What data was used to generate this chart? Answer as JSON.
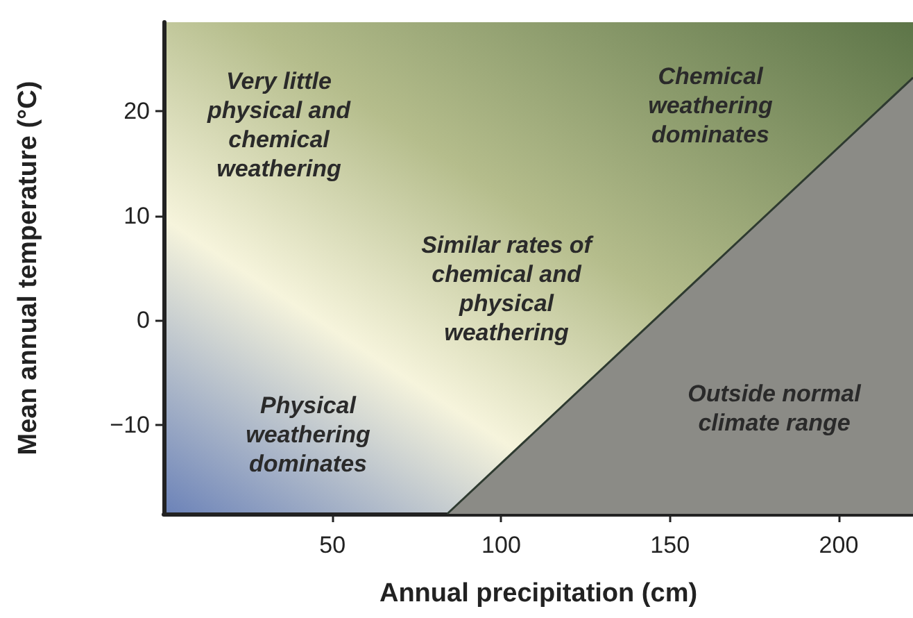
{
  "chart_data": {
    "type": "area",
    "xlabel": "Annual precipitation (cm)",
    "ylabel": "Mean annual temperature (°C)",
    "xlim": [
      0,
      222
    ],
    "xticks": [
      50,
      100,
      150,
      200
    ],
    "ylim": [
      -18.5,
      28.5
    ],
    "yticks": [
      -10,
      0,
      10,
      20
    ],
    "grid": false,
    "marker": "none",
    "line_style": "solid",
    "series": [
      {
        "color": "#8b8b86",
        "x": [
          84,
          222
        ],
        "values": [
          -18.5,
          23.2
        ]
      }
    ],
    "annotations": [
      "Very little\nphysical and\nchemical\nweathering",
      "Chemical\nweathering\ndominates",
      "Similar rates of\nchemical and\nphysical\nweathering",
      "Physical\nweathering\ndominates",
      "Outside normal\nclimate range"
    ]
  }
}
